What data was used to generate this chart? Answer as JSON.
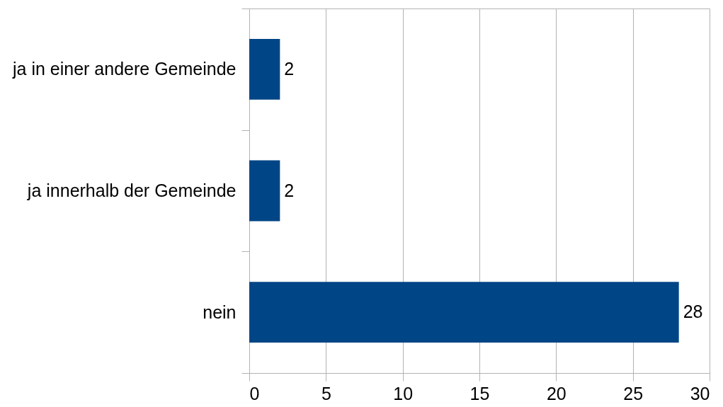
{
  "chart_data": {
    "type": "bar",
    "orientation": "horizontal",
    "categories": [
      "ja in einer andere Gemeinde",
      "ja innerhalb der Gemeinde",
      "nein"
    ],
    "values": [
      2,
      2,
      28
    ],
    "color": "#004586",
    "xlim": [
      0,
      30
    ],
    "xticks": [
      0,
      5,
      10,
      15,
      20,
      25,
      30
    ],
    "grid": "x",
    "data_labels": true
  }
}
